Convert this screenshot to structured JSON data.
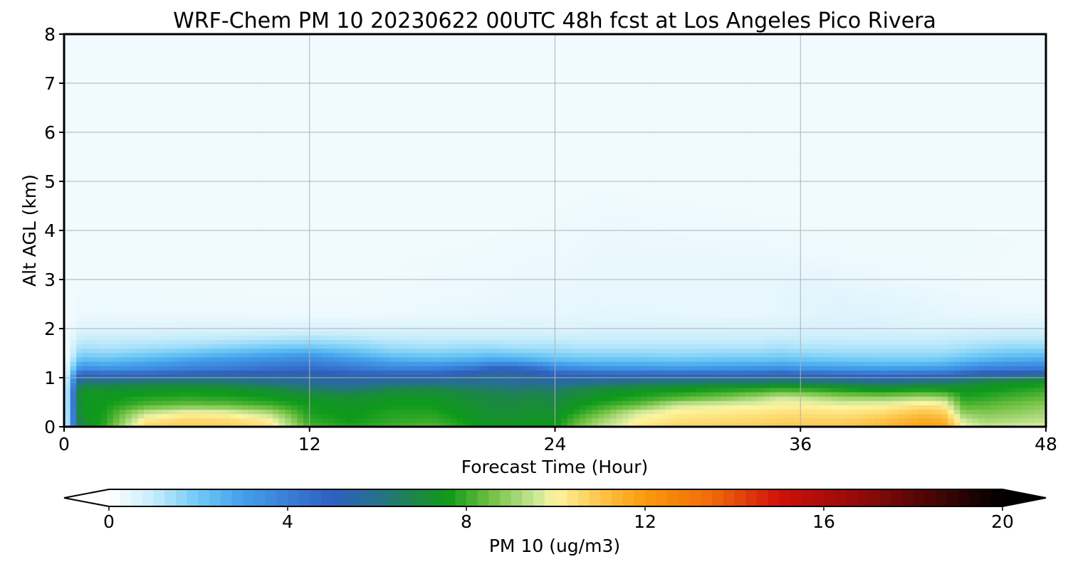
{
  "chart_data": {
    "type": "heatmap",
    "title": "WRF-Chem PM 10  20230622 00UTC 48h fcst at Los Angeles Pico Rivera",
    "xlabel": "Forecast Time (Hour)",
    "ylabel": "Alt AGL (km)",
    "xlim": [
      0,
      48
    ],
    "ylim": [
      0,
      8
    ],
    "xticks": [
      0,
      12,
      24,
      36,
      48
    ],
    "yticks": [
      0,
      1,
      2,
      3,
      4,
      5,
      6,
      7,
      8
    ],
    "grid": true,
    "x": [
      0,
      0.8,
      2,
      4,
      6,
      8,
      10,
      12,
      14,
      16,
      18,
      20,
      21,
      22,
      23,
      24,
      25,
      26,
      28,
      30,
      32,
      34,
      35,
      36,
      38,
      40,
      42,
      43,
      44,
      45,
      46,
      48
    ],
    "y": [
      0,
      0.15,
      0.3,
      0.45,
      0.6,
      0.75,
      0.9,
      1.05,
      1.2,
      1.35,
      1.5,
      1.65,
      1.8,
      2.0,
      2.3,
      2.6,
      3.0,
      3.4,
      3.8,
      4.2,
      4.6,
      5.0,
      5.5,
      6.0,
      6.5,
      7.0,
      8.0
    ],
    "colorbar": {
      "label": "PM 10  (ug/m3)",
      "ticks": [
        0,
        4,
        8,
        12,
        16,
        20
      ],
      "vmin": 0,
      "vmax": 20,
      "extend": "both",
      "stops": [
        {
          "v": 0,
          "color": "#ffffff"
        },
        {
          "v": 1,
          "color": "#c6ecfb"
        },
        {
          "v": 2,
          "color": "#6ec9f5"
        },
        {
          "v": 3,
          "color": "#42a0eb"
        },
        {
          "v": 4,
          "color": "#3a7fd6"
        },
        {
          "v": 5,
          "color": "#2f5fc0"
        },
        {
          "v": 6,
          "color": "#26708e"
        },
        {
          "v": 7,
          "color": "#1a8a3c"
        },
        {
          "v": 7.6,
          "color": "#0e9a1a"
        },
        {
          "v": 8.5,
          "color": "#6cbf3f"
        },
        {
          "v": 9.6,
          "color": "#cfe89a"
        },
        {
          "v": 10,
          "color": "#fdf5a0"
        },
        {
          "v": 11,
          "color": "#fdc54a"
        },
        {
          "v": 12,
          "color": "#fb9a0c"
        },
        {
          "v": 13.5,
          "color": "#f06a0a"
        },
        {
          "v": 15,
          "color": "#d0100a"
        },
        {
          "v": 17,
          "color": "#8b0a0a"
        },
        {
          "v": 20,
          "color": "#000000"
        }
      ]
    },
    "z": [
      [
        0,
        7,
        8,
        10.6,
        10.8,
        10.7,
        10.4,
        8.2,
        7.8,
        8.1,
        8.3,
        7.6,
        7.5,
        7.5,
        7.6,
        7.6,
        8.5,
        9.2,
        10.2,
        10.6,
        10.7,
        10.8,
        10.9,
        10.9,
        10.9,
        11.3,
        11.9,
        11.8,
        10,
        9.5,
        9.6,
        9.8
      ],
      [
        0,
        7.2,
        7.8,
        10.2,
        10.6,
        10.5,
        10.1,
        7.9,
        7.6,
        7.9,
        8,
        7.5,
        7.3,
        7.3,
        7.4,
        7.4,
        8.2,
        8.9,
        10,
        10.4,
        10.5,
        10.6,
        10.7,
        10.7,
        10.7,
        11,
        11.6,
        11.4,
        9.5,
        9.1,
        9.2,
        9.4
      ],
      [
        0,
        7.4,
        7.7,
        9.4,
        9.9,
        9.8,
        9.2,
        7.7,
        7.5,
        7.8,
        7.8,
        7.3,
        7.1,
        7.1,
        7.3,
        7.2,
        7.8,
        8.3,
        9.6,
        10.1,
        10.2,
        10.3,
        10.4,
        10.4,
        10.3,
        10.5,
        11,
        10.8,
        8.8,
        8.7,
        8.8,
        9.1
      ],
      [
        0,
        7.5,
        7.6,
        8.2,
        8.5,
        8.4,
        8.1,
        7.6,
        7.4,
        7.6,
        7.6,
        7.2,
        7,
        7,
        7.1,
        7,
        7.5,
        7.8,
        8.4,
        9.6,
        9.8,
        9.9,
        10,
        10,
        9.9,
        10,
        10.3,
        10.2,
        8.2,
        8.3,
        8.5,
        8.8
      ],
      [
        0,
        7.5,
        7.5,
        7.8,
        7.9,
        7.8,
        7.6,
        7.3,
        7.2,
        7.4,
        7.4,
        7,
        6.9,
        6.8,
        6.9,
        6.8,
        7.1,
        7.4,
        7.8,
        8.2,
        8.6,
        9.2,
        9.6,
        9.5,
        9,
        8.9,
        9.2,
        9,
        7.8,
        7.9,
        8.1,
        8.4
      ],
      [
        0,
        7.3,
        7.3,
        7.4,
        7.5,
        7.4,
        7.2,
        6.6,
        6.4,
        6.9,
        7,
        6.7,
        6.6,
        6.5,
        6.6,
        6.5,
        6.8,
        7.1,
        7.4,
        7.6,
        7.8,
        8,
        8.2,
        8.1,
        7.8,
        7.6,
        7.8,
        7.7,
        7.5,
        7.6,
        7.7,
        8
      ],
      [
        0,
        6.5,
        6.4,
        6.6,
        6.6,
        6.5,
        6.1,
        5.8,
        5.6,
        5.9,
        6,
        5.9,
        5.9,
        5.8,
        5.8,
        5.7,
        5.9,
        6,
        6.3,
        6.5,
        6.6,
        6.6,
        6.8,
        6.6,
        6.5,
        6.2,
        6.5,
        6.6,
        6.8,
        7.1,
        7.3,
        7.6
      ],
      [
        0,
        5.2,
        5,
        5.1,
        5.3,
        5.4,
        5.5,
        5.5,
        5.3,
        5.2,
        5.2,
        5.6,
        5.8,
        5.7,
        5.6,
        5.2,
        5.2,
        5.1,
        5.1,
        5.1,
        5.1,
        5.1,
        5.3,
        5.1,
        4.9,
        4.7,
        4.8,
        4.9,
        5.3,
        5.6,
        5.7,
        5.9
      ],
      [
        0,
        3.5,
        3.3,
        3.5,
        3.9,
        4.1,
        4.4,
        4.6,
        4.2,
        3.8,
        3.8,
        4.3,
        4.9,
        4.8,
        4.5,
        3.8,
        3.6,
        3.4,
        3.3,
        3.2,
        3.3,
        3.4,
        3.5,
        3.3,
        3.1,
        3,
        3.1,
        3.2,
        3.6,
        3.9,
        4,
        4.1
      ],
      [
        0,
        2.4,
        2.3,
        2.6,
        3,
        3.3,
        3.6,
        3.8,
        3.3,
        2.8,
        2.6,
        2.8,
        3,
        2.9,
        2.7,
        2.4,
        2.3,
        2.2,
        2.2,
        2.1,
        2.2,
        2.2,
        2.3,
        2.2,
        2.1,
        2,
        2,
        2.1,
        2.4,
        2.6,
        2.8,
        2.9
      ],
      [
        0,
        1.7,
        1.6,
        1.8,
        2.1,
        2.4,
        2.7,
        2.9,
        2.4,
        1.9,
        1.8,
        1.9,
        2,
        1.9,
        1.8,
        1.7,
        1.6,
        1.6,
        1.6,
        1.5,
        1.6,
        1.6,
        1.7,
        1.6,
        1.5,
        1.5,
        1.5,
        1.5,
        1.7,
        1.9,
        2,
        2.1
      ],
      [
        0,
        1.3,
        1.2,
        1.3,
        1.4,
        1.6,
        1.8,
        1.9,
        1.7,
        1.4,
        1.3,
        1.4,
        1.4,
        1.3,
        1.3,
        1.3,
        1.2,
        1.2,
        1.2,
        1.2,
        1.2,
        1.2,
        1.3,
        1.2,
        1.2,
        1.2,
        1.2,
        1.2,
        1.3,
        1.4,
        1.5,
        1.5
      ],
      [
        0,
        1.0,
        0.95,
        1.0,
        1.05,
        1.1,
        1.2,
        1.3,
        1.2,
        1.05,
        1.0,
        1.0,
        1.0,
        1.0,
        1.0,
        0.95,
        0.95,
        0.95,
        0.95,
        0.95,
        0.95,
        0.95,
        1.0,
        0.95,
        0.95,
        0.95,
        0.95,
        0.95,
        1.0,
        1.05,
        1.1,
        1.1
      ],
      [
        0,
        0.6,
        0.6,
        0.6,
        0.62,
        0.62,
        0.65,
        0.68,
        0.66,
        0.64,
        0.63,
        0.63,
        0.63,
        0.63,
        0.63,
        0.62,
        0.62,
        0.66,
        0.66,
        0.66,
        0.66,
        0.65,
        0.66,
        0.7,
        0.7,
        0.66,
        0.62,
        0.62,
        0.66,
        0.7,
        0.72,
        0.74
      ],
      [
        0,
        0.35,
        0.35,
        0.34,
        0.33,
        0.33,
        0.32,
        0.3,
        0.3,
        0.33,
        0.36,
        0.38,
        0.4,
        0.42,
        0.44,
        0.44,
        0.45,
        0.48,
        0.46,
        0.44,
        0.42,
        0.42,
        0.46,
        0.52,
        0.6,
        0.56,
        0.5,
        0.45,
        0.42,
        0.4,
        0.38,
        0.36
      ],
      [
        0,
        0.3,
        0.3,
        0.3,
        0.29,
        0.28,
        0.27,
        0.26,
        0.26,
        0.3,
        0.33,
        0.35,
        0.37,
        0.38,
        0.4,
        0.4,
        0.42,
        0.44,
        0.43,
        0.42,
        0.41,
        0.42,
        0.45,
        0.5,
        0.55,
        0.5,
        0.44,
        0.4,
        0.36,
        0.34,
        0.32,
        0.3
      ],
      [
        0,
        0.25,
        0.26,
        0.26,
        0.25,
        0.24,
        0.23,
        0.22,
        0.22,
        0.26,
        0.3,
        0.32,
        0.34,
        0.35,
        0.36,
        0.37,
        0.38,
        0.4,
        0.4,
        0.4,
        0.4,
        0.42,
        0.44,
        0.47,
        0.42,
        0.36,
        0.32,
        0.3,
        0.28,
        0.27,
        0.26,
        0.25
      ],
      [
        0,
        0.2,
        0.21,
        0.21,
        0.2,
        0.2,
        0.2,
        0.19,
        0.2,
        0.24,
        0.28,
        0.3,
        0.32,
        0.33,
        0.34,
        0.34,
        0.36,
        0.38,
        0.38,
        0.38,
        0.38,
        0.38,
        0.37,
        0.35,
        0.32,
        0.3,
        0.29,
        0.28,
        0.27,
        0.26,
        0.25,
        0.24
      ],
      [
        0,
        0.15,
        0.15,
        0.15,
        0.15,
        0.14,
        0.13,
        0.12,
        0.13,
        0.18,
        0.22,
        0.25,
        0.27,
        0.28,
        0.29,
        0.3,
        0.32,
        0.36,
        0.36,
        0.35,
        0.34,
        0.33,
        0.32,
        0.3,
        0.28,
        0.28,
        0.28,
        0.28,
        0.28,
        0.27,
        0.26,
        0.25
      ],
      [
        0,
        0.1,
        0.1,
        0.1,
        0.1,
        0.1,
        0.1,
        0.1,
        0.1,
        0.12,
        0.16,
        0.2,
        0.22,
        0.24,
        0.26,
        0.28,
        0.3,
        0.34,
        0.34,
        0.32,
        0.3,
        0.28,
        0.27,
        0.26,
        0.24,
        0.24,
        0.24,
        0.24,
        0.24,
        0.24,
        0.23,
        0.22
      ],
      [
        0,
        0.08,
        0.08,
        0.08,
        0.08,
        0.08,
        0.08,
        0.08,
        0.08,
        0.09,
        0.12,
        0.16,
        0.18,
        0.2,
        0.22,
        0.24,
        0.26,
        0.3,
        0.28,
        0.26,
        0.24,
        0.22,
        0.2,
        0.2,
        0.2,
        0.2,
        0.2,
        0.2,
        0.2,
        0.2,
        0.18,
        0.16
      ],
      [
        0,
        0.06,
        0.06,
        0.06,
        0.06,
        0.06,
        0.06,
        0.06,
        0.06,
        0.07,
        0.08,
        0.1,
        0.12,
        0.14,
        0.16,
        0.18,
        0.2,
        0.24,
        0.22,
        0.2,
        0.18,
        0.16,
        0.14,
        0.13,
        0.12,
        0.12,
        0.12,
        0.12,
        0.12,
        0.11,
        0.1,
        0.1
      ],
      [
        0,
        0.05,
        0.05,
        0.05,
        0.05,
        0.05,
        0.05,
        0.05,
        0.05,
        0.05,
        0.06,
        0.07,
        0.08,
        0.09,
        0.1,
        0.12,
        0.14,
        0.16,
        0.14,
        0.12,
        0.1,
        0.08,
        0.07,
        0.06,
        0.06,
        0.06,
        0.06,
        0.06,
        0.06,
        0.06,
        0.06,
        0.06
      ],
      [
        0,
        0.04,
        0.04,
        0.04,
        0.04,
        0.04,
        0.04,
        0.04,
        0.04,
        0.04,
        0.04,
        0.05,
        0.05,
        0.06,
        0.07,
        0.08,
        0.1,
        0.12,
        0.1,
        0.08,
        0.06,
        0.05,
        0.05,
        0.04,
        0.04,
        0.04,
        0.04,
        0.04,
        0.04,
        0.04,
        0.04,
        0.04
      ],
      [
        0,
        0.03,
        0.03,
        0.03,
        0.03,
        0.03,
        0.03,
        0.03,
        0.03,
        0.03,
        0.03,
        0.03,
        0.04,
        0.04,
        0.04,
        0.05,
        0.06,
        0.08,
        0.06,
        0.05,
        0.04,
        0.04,
        0.03,
        0.03,
        0.03,
        0.03,
        0.03,
        0.03,
        0.03,
        0.03,
        0.03,
        0.03
      ],
      [
        0,
        0.02,
        0.02,
        0.02,
        0.02,
        0.02,
        0.02,
        0.02,
        0.02,
        0.02,
        0.02,
        0.02,
        0.02,
        0.02,
        0.02,
        0.03,
        0.03,
        0.04,
        0.03,
        0.03,
        0.02,
        0.02,
        0.02,
        0.02,
        0.02,
        0.02,
        0.02,
        0.02,
        0.02,
        0.02,
        0.02,
        0.02
      ],
      [
        0,
        0.02,
        0.02,
        0.02,
        0.02,
        0.02,
        0.02,
        0.02,
        0.02,
        0.02,
        0.02,
        0.02,
        0.02,
        0.02,
        0.02,
        0.02,
        0.02,
        0.02,
        0.02,
        0.02,
        0.02,
        0.02,
        0.02,
        0.02,
        0.02,
        0.02,
        0.02,
        0.02,
        0.02,
        0.02,
        0.02,
        0.02
      ]
    ]
  }
}
